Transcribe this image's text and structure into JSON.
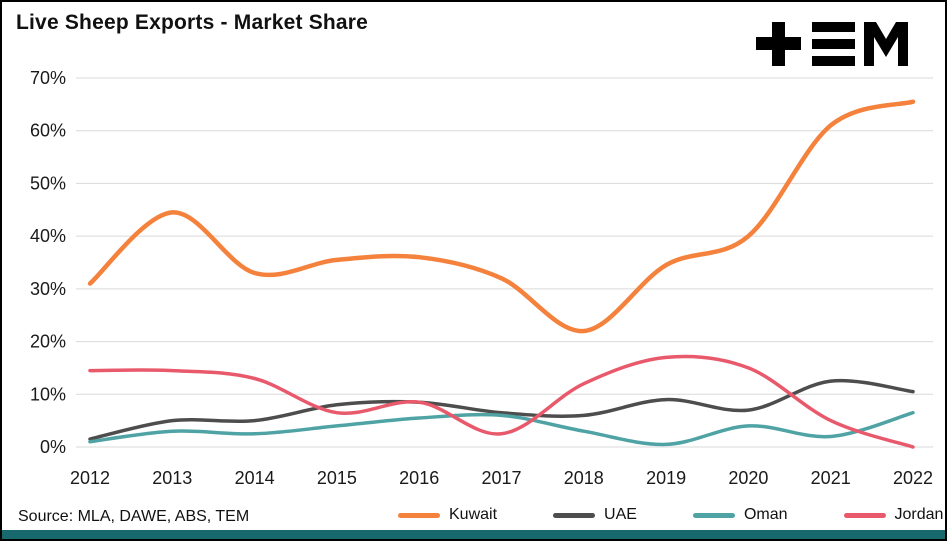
{
  "header": {
    "title": "Live Sheep Exports - Market Share",
    "logo_alt": "TEM logo"
  },
  "footer": {
    "source": "Source: MLA, DAWE, ABS, TEM"
  },
  "colors": {
    "gridline": "#d9d9d9",
    "bottom_bar": "#17696e",
    "logo": "#000000",
    "text": "#1a1a1a"
  },
  "chart_data": {
    "type": "line",
    "title": "Live Sheep Exports - Market Share",
    "x": [
      2012,
      2013,
      2014,
      2015,
      2016,
      2017,
      2018,
      2019,
      2020,
      2021,
      2022
    ],
    "series": [
      {
        "name": "Kuwait",
        "color": "#F4823C",
        "values": [
          31,
          44.5,
          33,
          35.5,
          36,
          32,
          22,
          34.5,
          40,
          61,
          65.5
        ]
      },
      {
        "name": "UAE",
        "color": "#4d4d4d",
        "values": [
          1.5,
          5,
          5,
          8,
          8.5,
          6.5,
          6,
          9,
          7,
          12.5,
          10.5
        ]
      },
      {
        "name": "Oman",
        "color": "#4FA3A4",
        "values": [
          1,
          3,
          2.5,
          4,
          5.5,
          6,
          3,
          0.5,
          4,
          2,
          6.5
        ]
      },
      {
        "name": "Jordan",
        "color": "#E9596C",
        "values": [
          14.5,
          14.5,
          13,
          6.5,
          8.5,
          2.5,
          12,
          17,
          15,
          5,
          0
        ]
      }
    ],
    "ylim": [
      0,
      70
    ],
    "ytick_step": 10,
    "ytick_suffix": "%",
    "grid": true,
    "legend_position": "bottom"
  }
}
